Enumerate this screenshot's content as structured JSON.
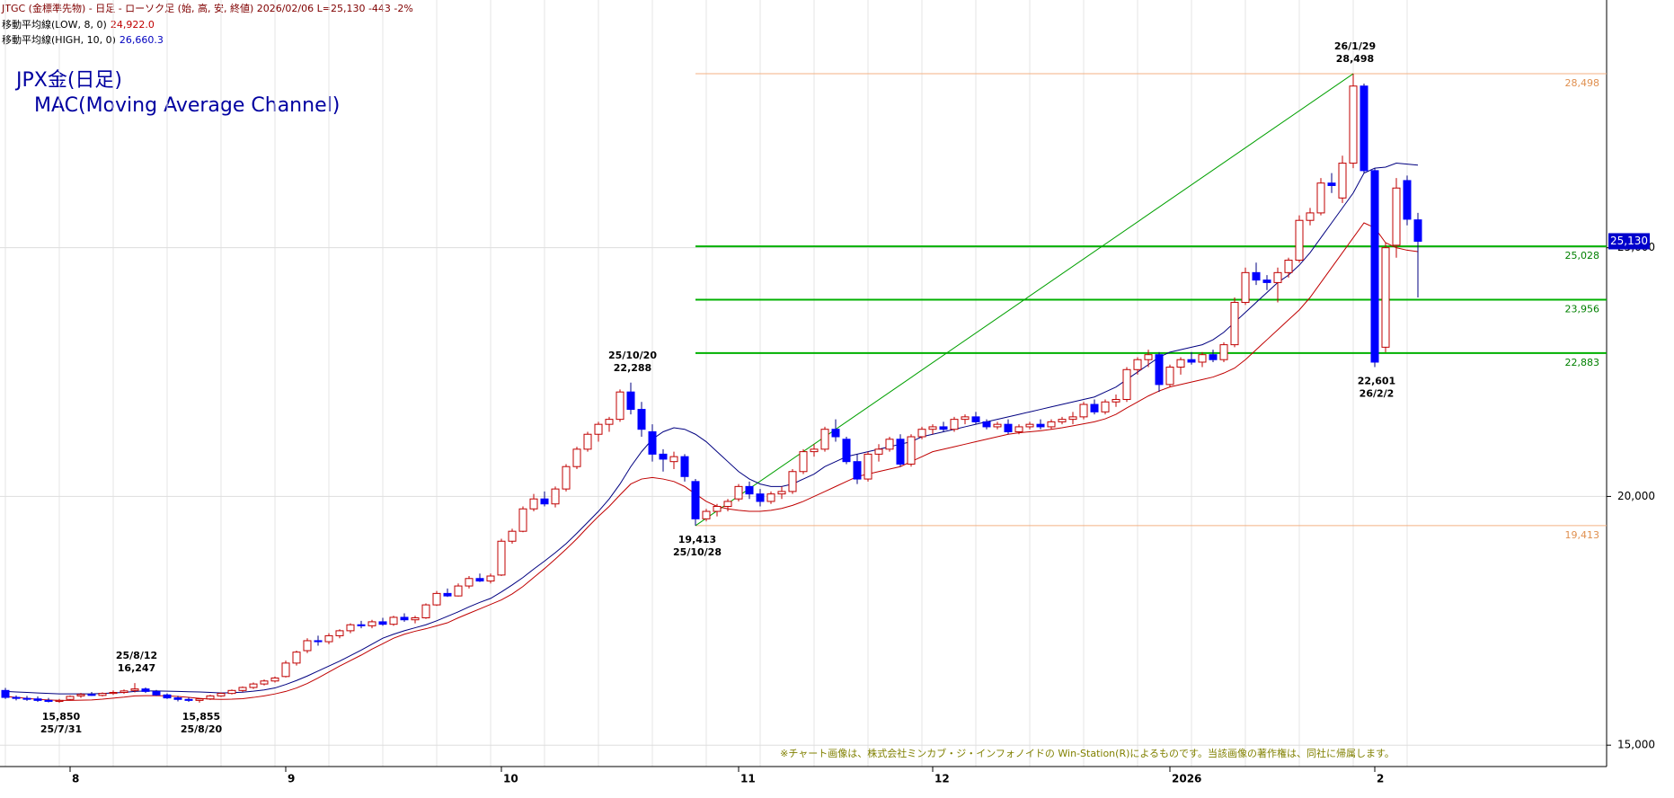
{
  "chart_data": {
    "type": "candlestick",
    "header": "JTGC (金標準先物) - 日足 - ローソク足 (始, 高, 安, 終値)  2026/02/06 L=25,130 -443 -2%",
    "title": "JPX金(日足)",
    "subtitle": "MAC(Moving Average Channel)",
    "note": "※チャート画像は、株式会社ミンカブ・ジ・インフォノイドの Win-Station(R)によるものです。当該画像の著作権は、同社に帰属します。",
    "categories": [
      null,
      null,
      null,
      null,
      null,
      null,
      "8",
      null,
      null,
      null,
      null,
      null,
      null,
      null,
      null,
      null,
      null,
      null,
      null,
      null,
      null,
      null,
      null,
      null,
      null,
      null,
      "9",
      null,
      null,
      null,
      null,
      null,
      null,
      null,
      null,
      null,
      null,
      null,
      null,
      null,
      null,
      null,
      null,
      null,
      null,
      null,
      "10",
      null,
      null,
      null,
      null,
      null,
      null,
      null,
      null,
      null,
      null,
      null,
      null,
      null,
      null,
      null,
      null,
      null,
      null,
      null,
      null,
      null,
      "11",
      null,
      null,
      null,
      null,
      null,
      null,
      null,
      null,
      null,
      null,
      null,
      null,
      null,
      null,
      null,
      null,
      null,
      "12",
      null,
      null,
      null,
      null,
      null,
      null,
      null,
      null,
      null,
      null,
      null,
      null,
      null,
      null,
      null,
      null,
      null,
      null,
      null,
      null,
      null,
      "2026",
      null,
      null,
      null,
      null,
      null,
      null,
      null,
      null,
      null,
      null,
      null,
      null,
      null,
      null,
      null,
      null,
      null,
      null,
      "2",
      null,
      null,
      null,
      null
    ],
    "open": [
      16100,
      15960,
      15940,
      15930,
      15900,
      15880,
      15920,
      15990,
      16020,
      16000,
      16040,
      16060,
      16100,
      16130,
      16080,
      16010,
      15950,
      15920,
      15900,
      15930,
      15990,
      16040,
      16100,
      16160,
      16230,
      16290,
      16380,
      16650,
      16900,
      17100,
      17080,
      17200,
      17300,
      17420,
      17400,
      17480,
      17430,
      17570,
      17520,
      17560,
      17820,
      18050,
      18000,
      18200,
      18350,
      18300,
      18420,
      19100,
      19300,
      19750,
      19950,
      19850,
      20150,
      20600,
      20950,
      21250,
      21450,
      21550,
      22100,
      21750,
      21300,
      20850,
      20700,
      20800,
      20300,
      19550,
      19700,
      19800,
      19950,
      20200,
      20050,
      19900,
      20050,
      20100,
      20500,
      20900,
      20950,
      21350,
      21150,
      20700,
      20350,
      20850,
      20950,
      21150,
      20650,
      21200,
      21350,
      21400,
      21350,
      21550,
      21600,
      21500,
      21400,
      21450,
      21300,
      21400,
      21450,
      21400,
      21500,
      21550,
      21600,
      21850,
      21700,
      21900,
      21950,
      22550,
      22750,
      22850,
      22250,
      22600,
      22750,
      22700,
      22850,
      22750,
      23050,
      23900,
      24500,
      24350,
      24300,
      24500,
      24750,
      25550,
      25700,
      26300,
      26000,
      26700,
      28250,
      26550,
      23000,
      25050,
      26350,
      25560
    ],
    "high": [
      16150,
      16000,
      15990,
      15980,
      15950,
      15930,
      16000,
      16050,
      16070,
      16060,
      16100,
      16120,
      16247,
      16160,
      16110,
      16040,
      15990,
      15960,
      15950,
      16010,
      16060,
      16120,
      16180,
      16260,
      16320,
      16380,
      16700,
      16900,
      17150,
      17200,
      17250,
      17330,
      17450,
      17500,
      17520,
      17560,
      17600,
      17650,
      17600,
      17850,
      18100,
      18150,
      18250,
      18400,
      18450,
      18450,
      19150,
      19350,
      19800,
      20050,
      20100,
      20200,
      20650,
      21000,
      21300,
      21500,
      21600,
      22150,
      22288,
      21900,
      21450,
      20950,
      20900,
      20850,
      20350,
      19750,
      19850,
      19950,
      20250,
      20300,
      20150,
      20100,
      20200,
      20550,
      20950,
      21050,
      21400,
      21550,
      21200,
      20850,
      20900,
      21050,
      21200,
      21250,
      21250,
      21400,
      21450,
      21500,
      21600,
      21650,
      21700,
      21550,
      21500,
      21550,
      21450,
      21500,
      21550,
      21550,
      21600,
      21700,
      21900,
      21950,
      21950,
      22050,
      22600,
      22800,
      22950,
      22900,
      22650,
      22800,
      22900,
      22900,
      22950,
      23100,
      24000,
      24600,
      24700,
      24450,
      24600,
      24800,
      25650,
      25800,
      26400,
      26500,
      26850,
      28498,
      28300,
      26600,
      25100,
      26400,
      26450,
      25700
    ],
    "low": [
      15930,
      15900,
      15890,
      15870,
      15860,
      15850,
      15900,
      15950,
      15990,
      15980,
      16010,
      16030,
      16060,
      16050,
      15990,
      15930,
      15880,
      15870,
      15855,
      15910,
      15970,
      16020,
      16070,
      16130,
      16200,
      16260,
      16360,
      16600,
      16850,
      17000,
      17030,
      17150,
      17250,
      17350,
      17350,
      17400,
      17400,
      17480,
      17450,
      17540,
      17800,
      17980,
      17990,
      18150,
      18280,
      18250,
      18400,
      19050,
      19280,
      19700,
      19800,
      19780,
      20100,
      20550,
      20900,
      21100,
      21300,
      21500,
      21650,
      21200,
      20700,
      20500,
      20550,
      20300,
      19413,
      19500,
      19600,
      19700,
      19900,
      19950,
      19800,
      19850,
      19950,
      20050,
      20450,
      20800,
      20900,
      21100,
      20650,
      20250,
      20300,
      20700,
      20900,
      20600,
      20600,
      21150,
      21250,
      21300,
      21300,
      21450,
      21450,
      21350,
      21350,
      21250,
      21250,
      21350,
      21350,
      21350,
      21450,
      21450,
      21550,
      21650,
      21650,
      21800,
      21900,
      22450,
      22600,
      22100,
      22200,
      22450,
      22650,
      22600,
      22700,
      22700,
      23000,
      23850,
      24250,
      24150,
      23900,
      24400,
      24700,
      25450,
      25650,
      26100,
      25900,
      26600,
      26500,
      22601,
      22900,
      24800,
      25450,
      24000
    ],
    "close": [
      15960,
      15940,
      15930,
      15900,
      15880,
      15900,
      15980,
      16020,
      16000,
      16040,
      16060,
      16090,
      16130,
      16080,
      16010,
      15950,
      15920,
      15900,
      15930,
      15990,
      16040,
      16100,
      16160,
      16230,
      16290,
      16350,
      16650,
      16870,
      17100,
      17080,
      17200,
      17300,
      17420,
      17400,
      17480,
      17430,
      17570,
      17520,
      17560,
      17820,
      18050,
      18000,
      18200,
      18350,
      18300,
      18400,
      19100,
      19300,
      19750,
      19950,
      19850,
      20150,
      20600,
      20950,
      21250,
      21450,
      21550,
      22100,
      21750,
      21350,
      20850,
      20750,
      20800,
      20400,
      19550,
      19700,
      19800,
      19900,
      20200,
      20050,
      19900,
      20050,
      20100,
      20500,
      20900,
      20950,
      21350,
      21200,
      20700,
      20350,
      20850,
      20950,
      21150,
      20650,
      21200,
      21350,
      21400,
      21350,
      21550,
      21600,
      21500,
      21400,
      21450,
      21300,
      21400,
      21450,
      21400,
      21500,
      21550,
      21600,
      21850,
      21700,
      21900,
      21950,
      22550,
      22750,
      22850,
      22250,
      22600,
      22750,
      22700,
      22850,
      22750,
      23050,
      23900,
      24500,
      24350,
      24300,
      24500,
      24750,
      25550,
      25700,
      26300,
      26250,
      26700,
      28250,
      26550,
      22700,
      25000,
      26200,
      25573,
      25130
    ],
    "up_color": "#c00000",
    "down_color": "#0000ff",
    "series": [
      {
        "name": "移動平均線(LOW, 8, 0)",
        "color": "#c00000",
        "value_label": "24,922.0",
        "values": [
          15980,
          15960,
          15940,
          15920,
          15910,
          15900,
          15900,
          15905,
          15910,
          15925,
          15945,
          15965,
          15990,
          15995,
          15995,
          15990,
          15980,
          15960,
          15940,
          15925,
          15920,
          15925,
          15935,
          15960,
          15990,
          16030,
          16080,
          16150,
          16240,
          16350,
          16470,
          16590,
          16700,
          16810,
          16930,
          17040,
          17150,
          17230,
          17290,
          17340,
          17400,
          17460,
          17560,
          17650,
          17740,
          17830,
          17920,
          18040,
          18190,
          18370,
          18550,
          18740,
          18940,
          19150,
          19380,
          19600,
          19800,
          20030,
          20250,
          20350,
          20380,
          20350,
          20300,
          20200,
          20050,
          19900,
          19800,
          19750,
          19720,
          19700,
          19700,
          19720,
          19760,
          19820,
          19900,
          20000,
          20100,
          20200,
          20300,
          20400,
          20450,
          20500,
          20550,
          20600,
          20700,
          20800,
          20900,
          20950,
          21000,
          21050,
          21100,
          21150,
          21200,
          21250,
          21280,
          21300,
          21320,
          21350,
          21380,
          21420,
          21460,
          21500,
          21560,
          21650,
          21780,
          21900,
          22020,
          22120,
          22200,
          22250,
          22300,
          22350,
          22400,
          22480,
          22580,
          22750,
          22950,
          23150,
          23350,
          23550,
          23750,
          24000,
          24300,
          24600,
          24900,
          25200,
          25500,
          25400,
          25100,
          25000,
          24950,
          24922
        ]
      },
      {
        "name": "移動平均線(HIGH, 10, 0)",
        "color": "#000080",
        "value_label": "26,660.3",
        "values": [
          16080,
          16070,
          16060,
          16050,
          16040,
          16030,
          16030,
          16030,
          16030,
          16040,
          16050,
          16060,
          16080,
          16090,
          16090,
          16085,
          16080,
          16075,
          16070,
          16060,
          16050,
          16055,
          16065,
          16085,
          16110,
          16150,
          16220,
          16300,
          16390,
          16490,
          16590,
          16690,
          16800,
          16910,
          17030,
          17150,
          17230,
          17300,
          17360,
          17420,
          17500,
          17590,
          17680,
          17780,
          17870,
          17950,
          18080,
          18220,
          18370,
          18540,
          18700,
          18870,
          19050,
          19260,
          19480,
          19700,
          19950,
          20250,
          20600,
          20900,
          21150,
          21300,
          21380,
          21350,
          21250,
          21100,
          20900,
          20700,
          20500,
          20350,
          20250,
          20200,
          20200,
          20250,
          20350,
          20450,
          20600,
          20700,
          20800,
          20850,
          20900,
          20950,
          21000,
          21050,
          21100,
          21200,
          21250,
          21300,
          21350,
          21400,
          21450,
          21500,
          21550,
          21600,
          21650,
          21700,
          21750,
          21800,
          21850,
          21900,
          21950,
          22000,
          22100,
          22200,
          22350,
          22500,
          22650,
          22800,
          22900,
          22950,
          23000,
          23050,
          23150,
          23300,
          23500,
          23700,
          23900,
          24100,
          24300,
          24450,
          24650,
          24900,
          25200,
          25500,
          25800,
          26100,
          26500,
          26600,
          26620,
          26700,
          26680,
          26660.3
        ]
      }
    ],
    "levels": [
      {
        "value": 28498,
        "label": "28,498",
        "color": "#f4b183"
      },
      {
        "value": 25028,
        "label": "25,028",
        "color": "#00b000"
      },
      {
        "value": 23956,
        "label": "23,956",
        "color": "#00b000"
      },
      {
        "value": 22883,
        "label": "22,883",
        "color": "#00b000"
      },
      {
        "value": 19413,
        "label": "19,413",
        "color": "#f4b183"
      }
    ],
    "annotations": [
      {
        "value": 15850,
        "label": "15,850",
        "date": "25/7/31"
      },
      {
        "value": 16247,
        "label": "16,247",
        "date": "25/8/12"
      },
      {
        "value": 15855,
        "label": "15,855",
        "date": "25/8/20"
      },
      {
        "value": 22288,
        "label": "22,288",
        "date": "25/10/20"
      },
      {
        "value": 19413,
        "label": "19,413",
        "date": "25/10/28"
      },
      {
        "value": 28498,
        "label": "28,498",
        "date": "26/1/29"
      },
      {
        "value": 22601,
        "label": "22,601",
        "date": "26/2/2"
      }
    ],
    "last_label": "25,130",
    "ylim": [
      14570,
      29980
    ],
    "yticks": [
      {
        "value": 15000,
        "label": "15,000"
      },
      {
        "value": 20000,
        "label": "20,000"
      },
      {
        "value": 25000,
        "label": "25,000"
      }
    ],
    "grid": true
  }
}
